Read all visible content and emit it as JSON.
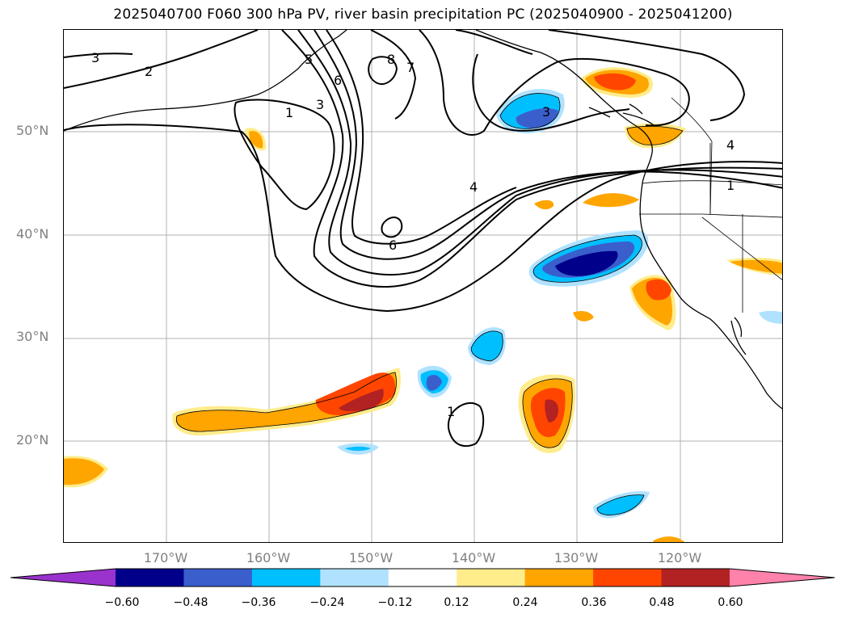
{
  "title": "2025040700 F060 300 hPa PV, river basin precipitation PC (2025040900 - 2025041200)",
  "lat_labels": [
    "50°N",
    "40°N",
    "30°N",
    "20°N"
  ],
  "lon_labels": [
    "170°W",
    "160°W",
    "150°W",
    "140°W",
    "130°W",
    "120°W"
  ],
  "contour_labels": [
    "3",
    "2",
    "5",
    "6",
    "8",
    "7",
    "1",
    "3",
    "3",
    "4",
    "4",
    "1",
    "6",
    "1"
  ],
  "colorbar": {
    "ticks": [
      "−0.60",
      "−0.48",
      "−0.36",
      "−0.24",
      "−0.12",
      "0.12",
      "0.24",
      "0.36",
      "0.48",
      "0.60"
    ],
    "colors": [
      "#9a32cd",
      "#00008b",
      "#3a5fcd",
      "#00bfff",
      "#b0e2ff",
      "#ffffff",
      "#ffec8b",
      "#ffa500",
      "#ff4500",
      "#b22222",
      "#ff82ab"
    ]
  }
}
